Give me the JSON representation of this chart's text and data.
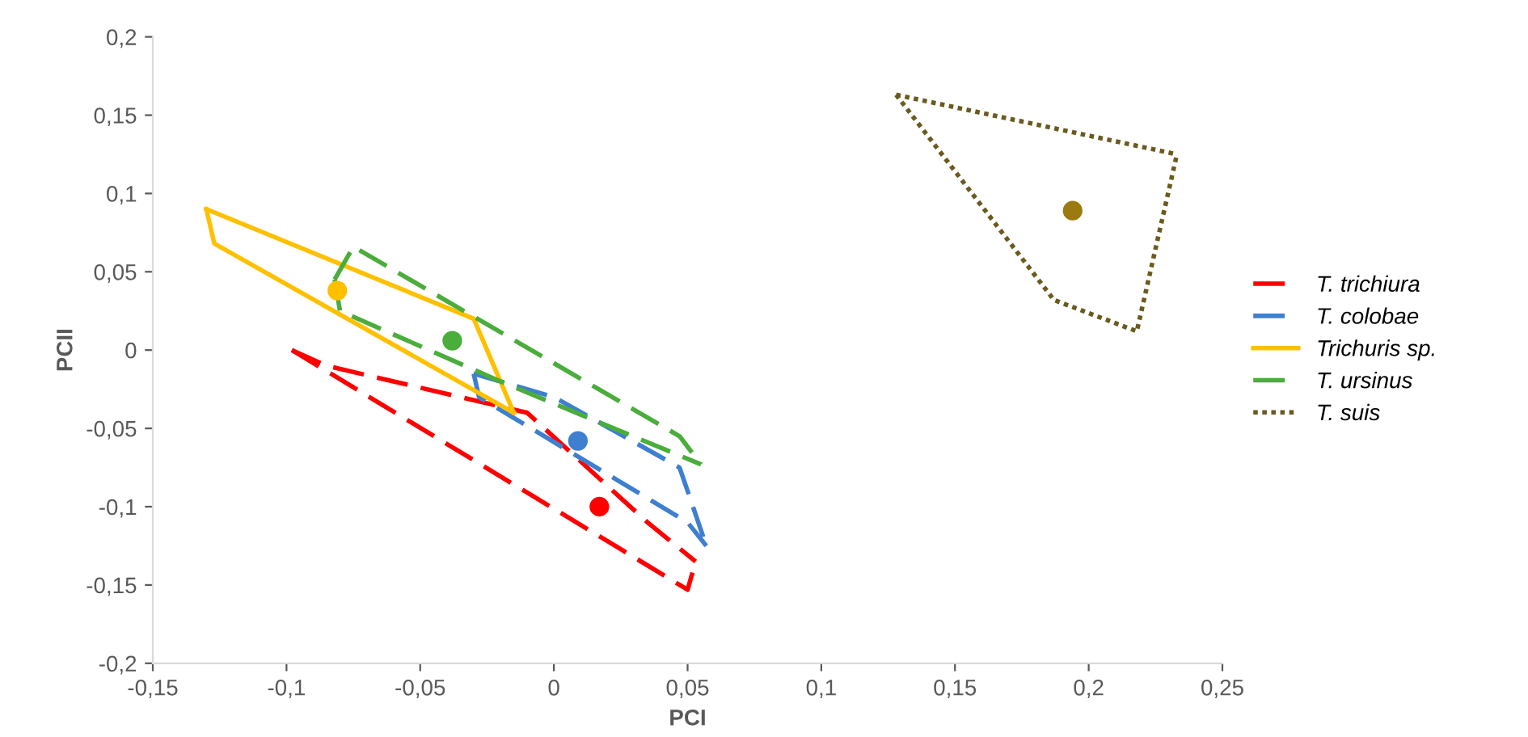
{
  "chart_data": {
    "type": "line",
    "xlabel": "PCI",
    "ylabel": "PCII",
    "xlim": [
      -0.15,
      0.25
    ],
    "xticks": [
      {
        "value": -0.15,
        "label": "-0,15"
      },
      {
        "value": -0.1,
        "label": "-0,1"
      },
      {
        "value": -0.05,
        "label": "-0,05"
      },
      0,
      {
        "value": 0.05,
        "label": "0,05"
      },
      {
        "value": 0.1,
        "label": "0,1"
      },
      {
        "value": 0.15,
        "label": "0,15"
      },
      {
        "value": 0.2,
        "label": "0,2"
      },
      {
        "value": 0.25,
        "label": "0,25"
      }
    ],
    "ylim": [
      -0.2,
      0.2
    ],
    "yticks": [
      {
        "value": -0.2,
        "label": "-0,2"
      },
      {
        "value": -0.15,
        "label": "-0,15"
      },
      {
        "value": -0.1,
        "label": "-0,1"
      },
      {
        "value": -0.05,
        "label": "-0,05"
      },
      0,
      {
        "value": 0.05,
        "label": "0,05"
      },
      {
        "value": 0.1,
        "label": "0,1"
      },
      {
        "value": 0.15,
        "label": "0,15"
      },
      {
        "value": 0.2,
        "label": "0,2"
      }
    ],
    "grid": false,
    "legend": "right",
    "marker": "none",
    "series": [
      {
        "name": "T. trichiura",
        "color": "#ff0000",
        "line_style": "dashed",
        "x": [
          -0.098,
          -0.085,
          -0.01,
          0.035,
          0.053
        ],
        "values": [
          0.0,
          -0.01,
          -0.04,
          -0.11,
          -0.135
        ]
      },
      {
        "color": "#ff0000",
        "line_style": "dashed",
        "x": [
          -0.098,
          0.05,
          0.053
        ],
        "values": [
          0.0,
          -0.153,
          -0.135
        ]
      },
      {
        "name": "T. colobae",
        "color": "#3f7fd0",
        "line_style": "dashed",
        "x": [
          -0.03,
          -0.02,
          0.0,
          0.047,
          0.057
        ],
        "values": [
          -0.015,
          -0.02,
          -0.03,
          -0.075,
          -0.125
        ]
      },
      {
        "color": "#3f7fd0",
        "line_style": "dashed",
        "x": [
          -0.03,
          -0.028,
          0.05,
          0.057
        ],
        "values": [
          -0.015,
          -0.03,
          -0.11,
          -0.125
        ]
      },
      {
        "name": "Trichuris sp.",
        "color": "#ffc000",
        "line_style": "solid",
        "x": [
          -0.13,
          -0.03,
          -0.015
        ],
        "values": [
          0.09,
          0.02,
          -0.04
        ]
      },
      {
        "color": "#ffc000",
        "line_style": "solid",
        "x": [
          -0.13,
          -0.127,
          -0.015
        ],
        "values": [
          0.09,
          0.068,
          -0.04
        ]
      },
      {
        "name": "T. ursinus",
        "color": "#4aad3c",
        "line_style": "dashed",
        "x": [
          -0.082,
          -0.075,
          0.047,
          0.055
        ],
        "values": [
          0.045,
          0.066,
          -0.055,
          -0.073
        ]
      },
      {
        "color": "#4aad3c",
        "line_style": "dashed",
        "x": [
          -0.082,
          -0.08,
          -0.02,
          0.055
        ],
        "values": [
          0.045,
          0.025,
          -0.02,
          -0.073
        ]
      },
      {
        "name": "T. suis",
        "color": "#6b5a1e",
        "line_style": "dotted",
        "x": [
          0.128,
          0.233
        ],
        "values": [
          0.163,
          0.125
        ]
      },
      {
        "color": "#6b5a1e",
        "line_style": "dotted",
        "x": [
          0.128,
          0.187,
          0.218,
          0.233
        ],
        "values": [
          0.163,
          0.032,
          0.012,
          0.125
        ]
      },
      {
        "type": "scatter",
        "marker": "circle",
        "color": "#ff0000",
        "x": [
          0.017
        ],
        "values": [
          -0.1
        ]
      },
      {
        "type": "scatter",
        "marker": "circle",
        "color": "#3f7fd0",
        "x": [
          0.009
        ],
        "values": [
          -0.058
        ]
      },
      {
        "type": "scatter",
        "marker": "circle",
        "color": "#ffc000",
        "x": [
          -0.081
        ],
        "values": [
          0.038
        ]
      },
      {
        "type": "scatter",
        "marker": "circle",
        "color": "#4aad3c",
        "x": [
          -0.038
        ],
        "values": [
          0.006
        ]
      },
      {
        "type": "scatter",
        "marker": "circle",
        "color": "#9b7a10",
        "x": [
          0.194
        ],
        "values": [
          0.089
        ]
      }
    ]
  }
}
